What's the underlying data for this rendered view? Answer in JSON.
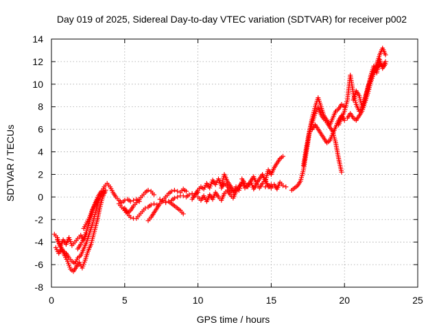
{
  "chart_data": {
    "type": "scatter",
    "title": "Day 019 of 2025, Sidereal Day-to-day VTEC variation (SDTVAR) for receiver p002",
    "xlabel": "GPS time / hours",
    "ylabel": "SDTVAR / TECUs",
    "xlim": [
      0,
      25
    ],
    "ylim": [
      -8,
      14
    ],
    "xticks": [
      "0",
      "5",
      "10",
      "15",
      "20",
      "25"
    ],
    "yticks": [
      "-8",
      "-6",
      "-4",
      "-2",
      "0",
      "2",
      "4",
      "6",
      "8",
      "10",
      "12",
      "14"
    ],
    "grid": true,
    "marker": "plus",
    "color": "#ff0000",
    "series": [
      {
        "x": [
          0.2,
          0.4,
          0.6,
          0.8,
          1.0,
          1.2,
          1.4,
          1.6,
          1.8,
          2.0,
          2.2,
          2.4
        ],
        "y": [
          -3.3,
          -3.6,
          -4.4,
          -3.8,
          -4.2,
          -3.6,
          -4.3,
          -4.0,
          -3.7,
          -3.4,
          -3.8,
          -3.2
        ]
      },
      {
        "x": [
          0.3,
          0.5,
          0.7,
          0.9,
          1.1,
          1.3,
          1.5,
          1.7,
          1.9,
          2.1,
          2.3,
          2.5,
          2.7,
          2.9,
          3.1,
          3.3,
          3.5,
          3.7
        ],
        "y": [
          -4.5,
          -5.0,
          -4.6,
          -5.2,
          -5.7,
          -6.4,
          -6.6,
          -6.2,
          -5.8,
          -6.3,
          -5.6,
          -4.8,
          -4.2,
          -3.2,
          -2.2,
          -1.0,
          0.0,
          0.6
        ]
      },
      {
        "x": [
          0.4,
          0.6,
          0.8,
          1.0,
          1.2,
          1.4,
          1.6,
          1.8,
          2.0,
          2.2,
          2.4,
          2.6,
          2.8,
          3.0,
          3.2,
          3.4
        ],
        "y": [
          -3.8,
          -4.3,
          -4.8,
          -5.0,
          -5.4,
          -5.7,
          -5.9,
          -5.4,
          -5.2,
          -4.6,
          -4.0,
          -3.2,
          -2.4,
          -1.4,
          -0.4,
          0.3
        ]
      },
      {
        "x": [
          1.8,
          2.0,
          2.2,
          2.4,
          2.6,
          2.8,
          3.0,
          3.2,
          3.4
        ],
        "y": [
          -4.6,
          -4.2,
          -3.7,
          -3.0,
          -2.2,
          -1.2,
          -0.5,
          0.1,
          0.5
        ]
      },
      {
        "x": [
          2.2,
          2.4,
          2.6,
          2.8,
          3.0,
          3.2,
          3.4,
          3.6
        ],
        "y": [
          -2.8,
          -2.3,
          -1.8,
          -1.1,
          -0.6,
          -0.1,
          0.2,
          0.4
        ]
      },
      {
        "x": [
          3.4,
          3.6,
          3.8,
          4.0,
          4.2,
          4.4,
          4.6,
          4.8,
          5.0,
          5.2,
          5.4,
          5.6,
          5.8,
          6.0
        ],
        "y": [
          0.2,
          0.9,
          1.2,
          0.9,
          0.4,
          0.0,
          -0.3,
          -0.5,
          -0.3,
          -0.2,
          -0.4,
          -0.3,
          -0.2,
          -0.4
        ]
      },
      {
        "x": [
          4.6,
          4.8,
          5.0,
          5.2,
          5.4,
          5.6,
          5.8,
          6.0,
          6.2,
          6.4,
          6.6,
          6.8,
          7.0,
          7.2
        ],
        "y": [
          -0.6,
          -0.9,
          -1.2,
          -1.5,
          -1.8,
          -1.9,
          -1.9,
          -1.6,
          -1.3,
          -1.0,
          -0.9,
          -0.7,
          -0.6,
          -0.7
        ]
      },
      {
        "x": [
          5.0,
          5.2,
          5.4,
          5.6,
          5.8,
          6.0,
          6.2,
          6.4,
          6.6,
          6.8,
          7.0
        ],
        "y": [
          -1.0,
          -1.4,
          -1.2,
          -0.8,
          -0.5,
          -0.2,
          0.1,
          0.4,
          0.6,
          0.5,
          0.2
        ]
      },
      {
        "x": [
          6.6,
          6.8,
          7.0,
          7.2,
          7.4,
          7.6,
          7.8,
          8.0,
          8.2,
          8.4,
          8.6,
          8.8,
          9.0,
          9.2
        ],
        "y": [
          -2.1,
          -1.8,
          -1.4,
          -1.0,
          -0.6,
          -0.3,
          0.0,
          0.3,
          0.5,
          0.6,
          0.5,
          0.4,
          0.7,
          0.5
        ]
      },
      {
        "x": [
          7.4,
          7.6,
          7.8,
          8.0,
          8.2,
          8.4,
          8.6,
          8.8,
          9.0,
          9.2,
          9.4,
          9.6,
          9.8,
          10.0
        ],
        "y": [
          -0.2,
          -0.3,
          -0.4,
          -0.4,
          -0.3,
          -0.1,
          0.0,
          0.1,
          0.1,
          0.0,
          0.2,
          0.3,
          0.2,
          0.4
        ]
      },
      {
        "x": [
          7.6,
          7.8,
          8.0,
          8.2,
          8.4,
          8.6,
          8.8,
          9.0
        ],
        "y": [
          -0.4,
          -0.5,
          -0.4,
          -0.6,
          -0.8,
          -1.0,
          -1.2,
          -1.5
        ]
      },
      {
        "x": [
          9.6,
          9.8,
          10.0,
          10.2,
          10.4,
          10.6,
          10.8,
          11.0,
          11.2,
          11.4,
          11.6,
          11.8,
          12.0,
          12.2,
          12.4
        ],
        "y": [
          -0.2,
          0.2,
          0.6,
          0.9,
          0.7,
          1.2,
          0.8,
          1.5,
          1.1,
          1.6,
          1.0,
          2.0,
          1.4,
          1.0,
          0.6
        ]
      },
      {
        "x": [
          10.0,
          10.2,
          10.4,
          10.6,
          10.8,
          11.0,
          11.2,
          11.4,
          11.6,
          11.8,
          12.0,
          12.2,
          12.4,
          12.6,
          12.8,
          13.0
        ],
        "y": [
          0.0,
          -0.3,
          0.1,
          -0.4,
          0.2,
          -0.2,
          0.4,
          0.0,
          -0.3,
          0.3,
          0.6,
          0.2,
          -0.1,
          0.5,
          0.9,
          1.3
        ]
      },
      {
        "x": [
          11.6,
          11.8,
          12.0,
          12.2,
          12.4,
          12.6,
          12.8,
          13.0,
          13.2,
          13.4,
          13.6,
          13.8,
          14.0,
          14.2,
          14.4,
          14.6,
          14.8,
          15.0
        ],
        "y": [
          0.8,
          1.2,
          1.0,
          0.6,
          0.4,
          0.9,
          0.6,
          1.3,
          0.8,
          1.0,
          1.4,
          0.7,
          1.1,
          0.8,
          1.2,
          1.5,
          0.9,
          1.1
        ]
      },
      {
        "x": [
          13.0,
          13.2,
          13.4,
          13.6,
          13.8,
          14.0,
          14.2,
          14.4,
          14.6,
          14.8,
          15.0,
          15.2,
          15.4,
          15.6,
          15.8
        ],
        "y": [
          1.6,
          1.2,
          0.9,
          1.4,
          1.8,
          1.2,
          1.6,
          2.0,
          1.4,
          2.4,
          2.0,
          2.6,
          3.0,
          3.4,
          3.6
        ]
      },
      {
        "x": [
          14.6,
          14.8,
          15.0,
          15.2,
          15.4,
          15.6,
          15.8,
          16.0
        ],
        "y": [
          0.9,
          1.0,
          0.8,
          1.1,
          0.7,
          1.3,
          1.0,
          0.9
        ]
      },
      {
        "x": [
          16.4,
          16.6,
          16.8,
          17.0,
          17.2,
          17.4,
          17.6,
          17.8,
          18.0,
          18.2,
          18.4,
          18.6,
          18.8,
          19.0,
          19.2,
          19.4,
          19.6,
          19.8
        ],
        "y": [
          0.6,
          0.8,
          1.0,
          1.4,
          2.4,
          4.0,
          5.6,
          6.6,
          7.4,
          7.9,
          7.3,
          6.9,
          6.6,
          6.2,
          5.8,
          4.8,
          3.4,
          2.2
        ]
      },
      {
        "x": [
          17.2,
          17.4,
          17.6,
          17.8,
          18.0,
          18.2,
          18.4,
          18.6,
          18.8,
          19.0,
          19.2,
          19.4,
          19.6,
          19.8,
          20.0
        ],
        "y": [
          2.8,
          4.4,
          5.8,
          7.0,
          8.0,
          8.8,
          8.0,
          7.2,
          6.8,
          6.4,
          7.0,
          7.6,
          7.8,
          8.2,
          8.0
        ]
      },
      {
        "x": [
          17.8,
          18.0,
          18.2,
          18.4,
          18.6,
          18.8,
          19.0,
          19.2,
          19.4,
          19.6,
          19.8,
          20.0
        ],
        "y": [
          6.0,
          6.4,
          6.0,
          5.6,
          5.2,
          4.8,
          5.0,
          5.6,
          6.2,
          6.8,
          7.2,
          6.8
        ]
      },
      {
        "x": [
          19.6,
          19.8,
          20.0,
          20.2,
          20.4,
          20.6,
          20.8,
          21.0,
          21.2,
          21.4,
          21.6,
          21.8,
          22.0,
          22.2,
          22.4,
          22.6,
          22.8
        ],
        "y": [
          6.4,
          7.0,
          7.6,
          8.6,
          10.8,
          9.2,
          8.2,
          7.6,
          7.8,
          8.6,
          9.8,
          10.4,
          11.2,
          11.8,
          12.6,
          13.2,
          12.6
        ]
      },
      {
        "x": [
          20.2,
          20.4,
          20.6,
          20.8,
          21.0,
          21.2,
          21.4,
          21.6,
          21.8,
          22.0,
          22.2,
          22.4,
          22.6,
          22.8
        ],
        "y": [
          7.0,
          7.4,
          7.0,
          6.8,
          7.2,
          7.6,
          8.4,
          9.2,
          10.2,
          11.0,
          11.4,
          11.8,
          11.6,
          12.0
        ]
      },
      {
        "x": [
          20.6,
          20.8,
          21.0,
          21.2,
          21.4,
          21.6,
          21.8,
          22.0,
          22.2,
          22.4,
          22.6,
          22.8
        ],
        "y": [
          8.6,
          9.4,
          9.0,
          8.0,
          8.8,
          9.6,
          10.8,
          11.6,
          11.0,
          12.2,
          11.4,
          11.8
        ]
      }
    ]
  }
}
